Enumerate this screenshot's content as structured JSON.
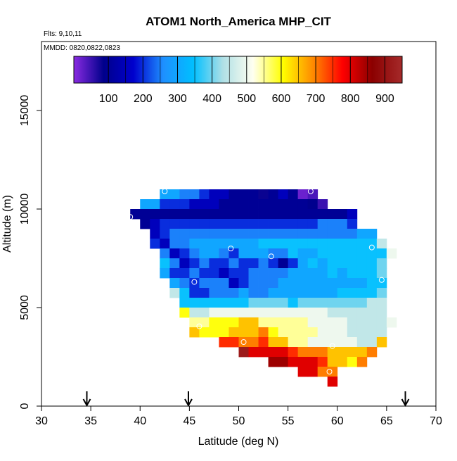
{
  "chart_data": {
    "type": "heatmap",
    "title": "ATOM1 North_America MHP_CIT",
    "subtitle_flights": "Flts: 9,10,11",
    "subtitle_dates": "MMDD: 0820,0822,0823",
    "xlabel": "Latitude (deg N)",
    "ylabel": "Altitude (m)",
    "xlim": [
      30,
      70
    ],
    "ylim": [
      0,
      18500
    ],
    "x_ticks": [
      "30",
      "35",
      "40",
      "45",
      "50",
      "55",
      "60",
      "65",
      "70"
    ],
    "y_ticks": [
      "0",
      "5000",
      "10000",
      "15000"
    ],
    "x_tick_values": [
      30,
      35,
      40,
      45,
      50,
      55,
      60,
      65,
      70
    ],
    "y_tick_values": [
      0,
      5000,
      10000,
      15000
    ],
    "cell_width_deg": 1,
    "cell_height_m": 500,
    "colorbar": {
      "min": 0,
      "max": 950,
      "tick_labels": [
        "100",
        "200",
        "300",
        "400",
        "500",
        "600",
        "700",
        "800",
        "900"
      ],
      "tick_values": [
        100,
        200,
        300,
        400,
        500,
        600,
        700,
        800,
        900
      ],
      "colors": [
        "#8a2be2",
        "#00008b",
        "#0000cd",
        "#1e90ff",
        "#00bfff",
        "#b0e0e6",
        "#fffff0",
        "#ffff00",
        "#ff8c00",
        "#ff0000",
        "#8b0000",
        "#a52a2a"
      ]
    },
    "profile_arrows_lat": [
      34.6,
      44.9,
      66.9
    ],
    "cells": [
      {
        "y": 10750,
        "x0": 42,
        "values": [
          300,
          300,
          250,
          250,
          200,
          150,
          150,
          100,
          100,
          100,
          80,
          100,
          150,
          100,
          20,
          40
        ]
      },
      {
        "y": 10250,
        "x0": 40,
        "values": [
          300,
          300,
          200,
          200,
          200,
          150,
          150,
          150,
          100,
          100,
          100,
          100,
          100,
          100,
          100,
          100,
          100,
          90,
          50
        ]
      },
      {
        "y": 9750,
        "x0": 39,
        "values": [
          100,
          100,
          100,
          100,
          100,
          100,
          100,
          100,
          100,
          100,
          100,
          100,
          100,
          100,
          100,
          100,
          100,
          100,
          100,
          100,
          100,
          100,
          150
        ]
      },
      {
        "y": 9250,
        "x0": 40,
        "values": [
          100,
          150,
          200,
          200,
          200,
          200,
          200,
          200,
          200,
          200,
          200,
          200,
          200,
          200,
          200,
          200,
          200,
          200,
          250,
          250,
          250,
          200
        ]
      },
      {
        "y": 8750,
        "x0": 41,
        "values": [
          150,
          200,
          250,
          250,
          250,
          250,
          250,
          250,
          250,
          250,
          250,
          250,
          250,
          250,
          250,
          250,
          250,
          250,
          250,
          250,
          250,
          300,
          300
        ]
      },
      {
        "y": 8250,
        "x0": 41,
        "values": [
          200,
          150,
          250,
          250,
          300,
          300,
          300,
          300,
          300,
          300,
          300,
          350,
          350,
          350,
          350,
          350,
          350,
          350,
          350,
          350,
          350,
          350,
          350,
          450
        ]
      },
      {
        "y": 7750,
        "x0": 42,
        "values": [
          250,
          150,
          200,
          250,
          300,
          300,
          250,
          200,
          300,
          300,
          300,
          250,
          250,
          350,
          300,
          300,
          350,
          350,
          350,
          350,
          350,
          350,
          350,
          500
        ]
      },
      {
        "y": 7250,
        "x0": 42,
        "values": [
          350,
          250,
          150,
          200,
          250,
          200,
          200,
          250,
          200,
          200,
          250,
          200,
          100,
          200,
          300,
          350,
          300,
          350,
          350,
          350,
          350,
          350,
          400
        ]
      },
      {
        "y": 6750,
        "x0": 42,
        "values": [
          300,
          200,
          200,
          250,
          200,
          200,
          150,
          200,
          200,
          250,
          250,
          250,
          250,
          300,
          300,
          300,
          300,
          350,
          300,
          350,
          350,
          350,
          400
        ]
      },
      {
        "y": 6250,
        "x0": 43,
        "values": [
          300,
          250,
          200,
          250,
          250,
          250,
          150,
          200,
          250,
          250,
          250,
          300,
          300,
          300,
          300,
          300,
          300,
          300,
          300,
          300,
          350,
          350
        ]
      },
      {
        "y": 5750,
        "x0": 43,
        "values": [
          450,
          350,
          200,
          200,
          250,
          250,
          250,
          300,
          250,
          250,
          300,
          300,
          300,
          300,
          300,
          300,
          300,
          350,
          350,
          350,
          350,
          400
        ]
      },
      {
        "y": 5250,
        "x0": 44,
        "values": [
          350,
          350,
          350,
          350,
          350,
          350,
          350,
          400,
          400,
          400,
          400,
          350,
          400,
          400,
          400,
          400,
          400,
          400,
          400,
          450,
          450
        ]
      },
      {
        "y": 4750,
        "x0": 44,
        "values": [
          600,
          450,
          450,
          500,
          500,
          500,
          500,
          500,
          500,
          500,
          500,
          500,
          500,
          500,
          500,
          450,
          450,
          450,
          450,
          450,
          450
        ]
      },
      {
        "y": 4250,
        "x0": 45,
        "values": [
          550,
          550,
          600,
          600,
          600,
          650,
          650,
          550,
          550,
          550,
          550,
          550,
          500,
          500,
          500,
          500,
          450,
          450,
          450,
          450,
          500
        ]
      },
      {
        "y": 3750,
        "x0": 45,
        "values": [
          650,
          600,
          600,
          600,
          650,
          650,
          650,
          700,
          600,
          550,
          550,
          550,
          550,
          500,
          500,
          500,
          450,
          450,
          450,
          450
        ]
      },
      {
        "y": 3250,
        "x0": 48,
        "values": [
          750,
          750,
          700,
          700,
          750,
          650,
          650,
          550,
          550,
          500,
          500,
          500,
          500,
          500,
          450,
          450,
          650
        ]
      },
      {
        "y": 2750,
        "x0": 50,
        "values": [
          920,
          800,
          800,
          800,
          800,
          750,
          700,
          700,
          700,
          650,
          650,
          650,
          650,
          700
        ]
      },
      {
        "y": 2250,
        "x0": 53,
        "values": [
          850,
          850,
          800,
          800,
          800,
          750,
          650,
          650,
          600,
          700
        ]
      },
      {
        "y": 1750,
        "x0": 56,
        "values": [
          800,
          800,
          700,
          700
        ]
      },
      {
        "y": 1250,
        "x0": 59,
        "values": [
          800
        ]
      }
    ],
    "circle_markers": [
      {
        "x": 42.5,
        "y": 10900
      },
      {
        "x": 57.3,
        "y": 10900
      },
      {
        "x": 39.0,
        "y": 9600
      },
      {
        "x": 49.2,
        "y": 8000
      },
      {
        "x": 53.3,
        "y": 7600
      },
      {
        "x": 63.5,
        "y": 8050
      },
      {
        "x": 45.5,
        "y": 6300
      },
      {
        "x": 64.5,
        "y": 6400
      },
      {
        "x": 46.0,
        "y": 4050
      },
      {
        "x": 50.5,
        "y": 3250
      },
      {
        "x": 59.5,
        "y": 3050
      },
      {
        "x": 59.2,
        "y": 1750
      }
    ]
  }
}
